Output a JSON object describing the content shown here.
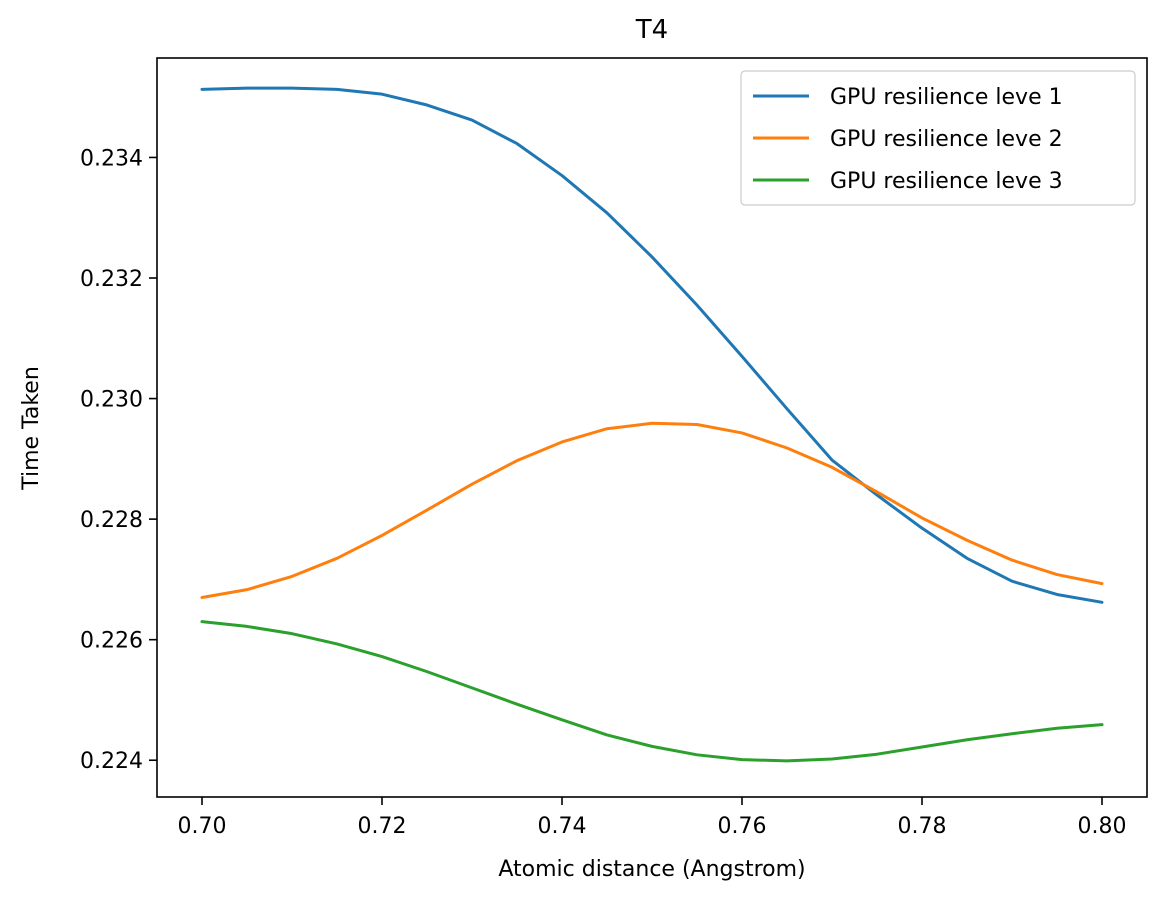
{
  "chart_data": {
    "type": "line",
    "title": "T4",
    "xlabel": "Atomic distance (Angstrom)",
    "ylabel": "Time Taken",
    "xlim": [
      0.695,
      0.805
    ],
    "ylim": [
      0.22339,
      0.23565
    ],
    "grid": false,
    "legend_position": "top-right",
    "x_ticks": [
      0.7,
      0.72,
      0.74,
      0.76,
      0.78,
      0.8
    ],
    "x_tick_labels": [
      "0.70",
      "0.72",
      "0.74",
      "0.76",
      "0.78",
      "0.80"
    ],
    "y_ticks": [
      0.224,
      0.226,
      0.228,
      0.23,
      0.232,
      0.234
    ],
    "y_tick_labels": [
      "0.224",
      "0.226",
      "0.228",
      "0.230",
      "0.232",
      "0.234"
    ],
    "x": [
      0.7,
      0.705,
      0.71,
      0.715,
      0.72,
      0.725,
      0.73,
      0.735,
      0.74,
      0.745,
      0.75,
      0.755,
      0.76,
      0.765,
      0.77,
      0.775,
      0.78,
      0.785,
      0.79,
      0.795,
      0.8
    ],
    "series": [
      {
        "name": "GPU resilience leve 1",
        "color": "#1f77b4",
        "values": [
          0.23513,
          0.23515,
          0.23515,
          0.23513,
          0.23505,
          0.23487,
          0.23462,
          0.23423,
          0.2337,
          0.23308,
          0.23235,
          0.23155,
          0.2307,
          0.22983,
          0.22898,
          0.2284,
          0.22785,
          0.22735,
          0.22697,
          0.22675,
          0.22662
        ]
      },
      {
        "name": "GPU resilience leve 2",
        "color": "#ff7f0e",
        "values": [
          0.2267,
          0.22683,
          0.22705,
          0.22735,
          0.22773,
          0.22815,
          0.22858,
          0.22897,
          0.22928,
          0.2295,
          0.22959,
          0.22957,
          0.22943,
          0.22918,
          0.22886,
          0.22845,
          0.22802,
          0.22765,
          0.22732,
          0.22708,
          0.22693
        ]
      },
      {
        "name": "GPU resilience leve 3",
        "color": "#2ca02c",
        "values": [
          0.2263,
          0.22622,
          0.2261,
          0.22593,
          0.22572,
          0.22547,
          0.2252,
          0.22493,
          0.22467,
          0.22442,
          0.22423,
          0.22409,
          0.22401,
          0.22399,
          0.22402,
          0.2241,
          0.22422,
          0.22434,
          0.22444,
          0.22453,
          0.22459
        ]
      }
    ]
  }
}
